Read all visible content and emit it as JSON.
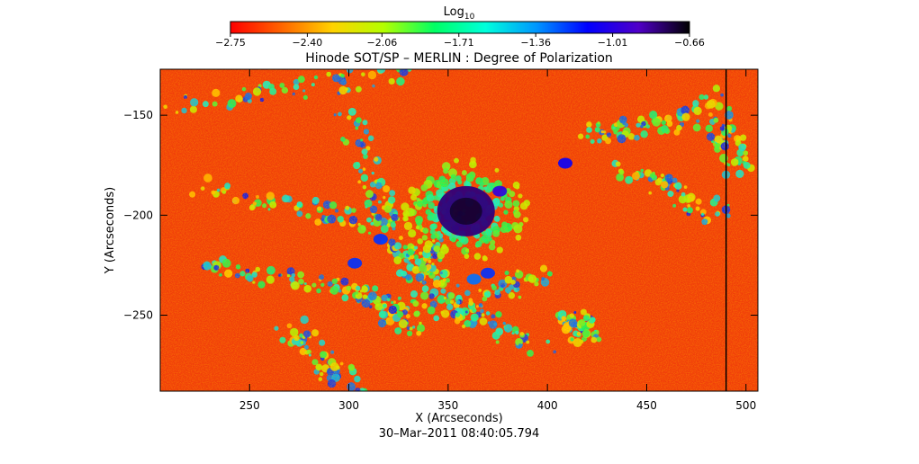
{
  "chart_data": {
    "type": "heatmap",
    "title": "Hinode SOT/SP – MERLIN : Degree of Polarization",
    "xlabel": "X (Arcseconds)",
    "ylabel": "Y (Arcseconds)",
    "footer": "30–Mar–2011 08:40:05.794",
    "xlim": [
      205,
      506
    ],
    "ylim": [
      -288,
      -127
    ],
    "x_ticks": [
      250,
      300,
      350,
      400,
      450,
      500
    ],
    "y_ticks": [
      -150,
      -200,
      -250
    ],
    "x_tick_labels": [
      "250",
      "300",
      "350",
      "400",
      "450",
      "500"
    ],
    "y_tick_labels": [
      "−150",
      "−200",
      "−250"
    ],
    "colorbar": {
      "label_base": "Log",
      "label_sub": "10",
      "min": -2.75,
      "max": -0.66,
      "ticks": [
        -2.75,
        -2.4,
        -2.06,
        -1.71,
        -1.36,
        -1.01,
        -0.66
      ],
      "tick_labels": [
        "−2.75",
        "−2.40",
        "−2.06",
        "−1.71",
        "−1.36",
        "−1.01",
        "−0.66"
      ],
      "colormap": [
        "#ff0000",
        "#ff6400",
        "#ffd200",
        "#b4ff00",
        "#00ff64",
        "#00ffdc",
        "#0096ff",
        "#0000ff",
        "#5000c8",
        "#000000"
      ]
    },
    "features": [
      {
        "name": "sunspot",
        "x": 359,
        "y": -198,
        "value": -0.8
      },
      {
        "name": "pore",
        "x": 376,
        "y": -188,
        "value": -1.0
      },
      {
        "name": "pore",
        "x": 409,
        "y": -174,
        "value": -1.1
      },
      {
        "name": "pore",
        "x": 303,
        "y": -224,
        "value": -1.2
      },
      {
        "name": "pore",
        "x": 316,
        "y": -212,
        "value": -1.2
      },
      {
        "name": "pore",
        "x": 370,
        "y": -229,
        "value": -1.2
      },
      {
        "name": "pore",
        "x": 363,
        "y": -232,
        "value": -1.3
      }
    ],
    "vertical_line_x": 490,
    "grid": false,
    "legend": "colorbar-top"
  }
}
